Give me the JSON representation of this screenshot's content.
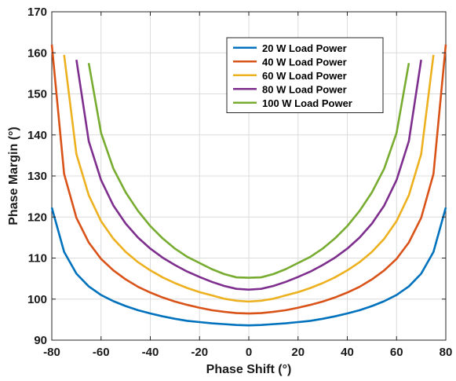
{
  "chart_data": {
    "type": "line",
    "title": "",
    "xlabel": "Phase Shift (°)",
    "ylabel": "Phase Margin (°)",
    "xlim": [
      -80,
      80
    ],
    "ylim": [
      90,
      170
    ],
    "xticks": [
      -80,
      -60,
      -40,
      -20,
      0,
      20,
      40,
      60,
      80
    ],
    "yticks": [
      90,
      100,
      110,
      120,
      130,
      140,
      150,
      160,
      170
    ],
    "grid": true,
    "legend_position": "top-right",
    "series": [
      {
        "name": "20 W Load Power",
        "color": "#0072BD",
        "x": [
          -80,
          -75,
          -70,
          -65,
          -60,
          -55,
          -50,
          -45,
          -40,
          -35,
          -30,
          -25,
          -20,
          -15,
          -10,
          -5,
          0,
          5,
          10,
          15,
          20,
          25,
          30,
          35,
          40,
          45,
          50,
          55,
          60,
          65,
          70,
          75,
          80
        ],
        "y": [
          122.3,
          111.5,
          106.2,
          103.1,
          101.0,
          99.5,
          98.3,
          97.3,
          96.5,
          95.8,
          95.2,
          94.7,
          94.4,
          94.1,
          93.9,
          93.7,
          93.6,
          93.7,
          93.9,
          94.1,
          94.4,
          94.7,
          95.2,
          95.8,
          96.5,
          97.3,
          98.3,
          99.5,
          101.0,
          103.1,
          106.2,
          111.5,
          122.3
        ]
      },
      {
        "name": "40 W Load Power",
        "color": "#D95319",
        "x": [
          -80,
          -75,
          -70,
          -65,
          -60,
          -55,
          -50,
          -45,
          -40,
          -35,
          -30,
          -25,
          -20,
          -15,
          -10,
          -5,
          0,
          5,
          10,
          15,
          20,
          25,
          30,
          35,
          40,
          45,
          50,
          55,
          60,
          65,
          70,
          75,
          80
        ],
        "y": [
          162.0,
          130.5,
          119.8,
          113.8,
          109.8,
          107.0,
          104.8,
          103.0,
          101.6,
          100.4,
          99.4,
          98.6,
          97.9,
          97.3,
          96.9,
          96.6,
          96.5,
          96.6,
          96.9,
          97.3,
          97.9,
          98.6,
          99.4,
          100.4,
          101.6,
          103.0,
          104.8,
          107.0,
          109.8,
          113.8,
          119.8,
          130.5,
          162.0
        ]
      },
      {
        "name": "60 W Load Power",
        "color": "#EDB120",
        "x": [
          -75,
          -70,
          -65,
          -60,
          -55,
          -50,
          -45,
          -40,
          -35,
          -30,
          -25,
          -20,
          -15,
          -10,
          -5,
          0,
          5,
          10,
          15,
          20,
          25,
          30,
          35,
          40,
          45,
          50,
          55,
          60,
          65,
          70,
          75
        ],
        "y": [
          159.5,
          135.3,
          125.3,
          119.0,
          114.7,
          111.5,
          109.0,
          107.0,
          105.3,
          103.9,
          102.7,
          101.7,
          100.9,
          100.1,
          99.6,
          99.4,
          99.6,
          100.1,
          100.9,
          101.7,
          102.7,
          103.9,
          105.3,
          107.0,
          109.0,
          111.5,
          114.7,
          119.0,
          125.3,
          135.3,
          159.5
        ]
      },
      {
        "name": "80 W Load Power",
        "color": "#7E2F8E",
        "x": [
          -70,
          -65,
          -60,
          -55,
          -50,
          -45,
          -40,
          -35,
          -30,
          -25,
          -20,
          -15,
          -10,
          -5,
          0,
          5,
          10,
          15,
          20,
          25,
          30,
          35,
          40,
          45,
          50,
          55,
          60,
          65,
          70
        ],
        "y": [
          158.3,
          138.5,
          129.0,
          122.8,
          118.4,
          115.0,
          112.3,
          110.1,
          108.3,
          106.7,
          105.4,
          104.2,
          103.2,
          102.5,
          102.3,
          102.5,
          103.2,
          104.2,
          105.4,
          106.7,
          108.3,
          110.1,
          112.3,
          115.0,
          118.4,
          122.8,
          129.0,
          138.5,
          158.3
        ]
      },
      {
        "name": "100 W Load Power",
        "color": "#77AC30",
        "x": [
          -65,
          -60,
          -55,
          -50,
          -45,
          -40,
          -35,
          -30,
          -25,
          -20,
          -15,
          -10,
          -5,
          0,
          5,
          10,
          15,
          20,
          25,
          30,
          35,
          40,
          45,
          50,
          55,
          60,
          65
        ],
        "y": [
          157.5,
          140.5,
          131.8,
          126.0,
          121.5,
          117.8,
          114.8,
          112.3,
          110.3,
          108.8,
          107.3,
          106.1,
          105.3,
          105.2,
          105.3,
          106.1,
          107.3,
          108.8,
          110.3,
          112.3,
          114.8,
          117.8,
          121.5,
          126.0,
          131.8,
          140.5,
          157.5
        ]
      }
    ]
  }
}
